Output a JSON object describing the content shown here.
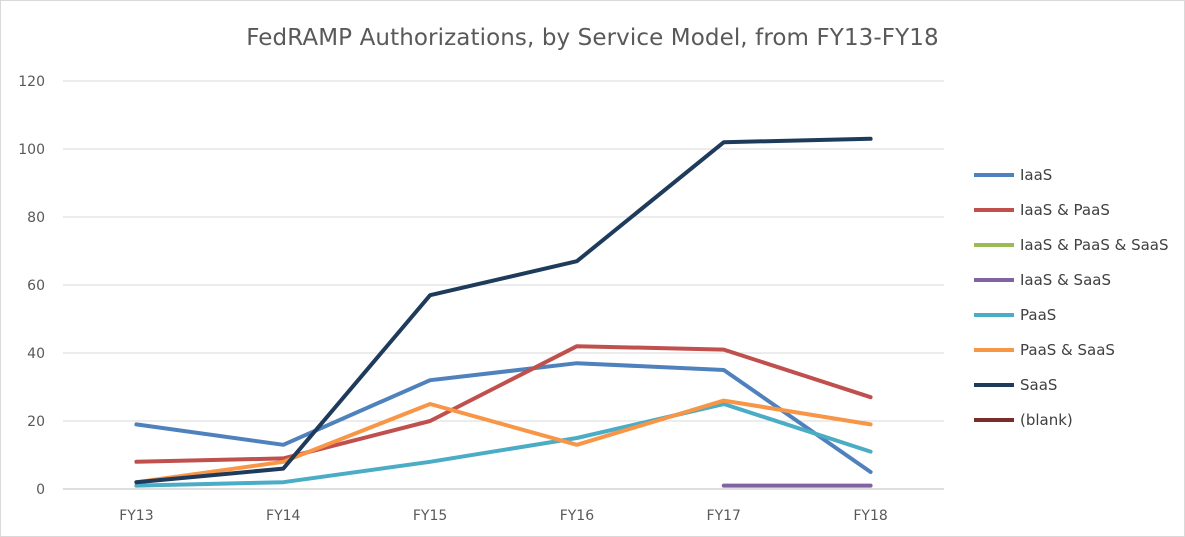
{
  "chart_data": {
    "type": "line",
    "title": "FedRAMP Authorizations, by Service Model, from FY13-FY18",
    "xlabel": "",
    "ylabel": "",
    "categories": [
      "FY13",
      "FY14",
      "FY15",
      "FY16",
      "FY17",
      "FY18"
    ],
    "ylim": [
      0,
      120
    ],
    "yticks": [
      0,
      20,
      40,
      60,
      80,
      100,
      120
    ],
    "grid": true,
    "legend_position": "right",
    "series": [
      {
        "name": "IaaS",
        "color": "#4F81BD",
        "values": [
          19,
          13,
          32,
          37,
          35,
          5
        ]
      },
      {
        "name": "IaaS & PaaS",
        "color": "#C0504D",
        "values": [
          8,
          9,
          20,
          42,
          41,
          27
        ]
      },
      {
        "name": "IaaS & PaaS & SaaS",
        "color": "#9BBB59",
        "values": [
          null,
          null,
          null,
          null,
          null,
          null
        ]
      },
      {
        "name": "IaaS & SaaS",
        "color": "#8064A2",
        "values": [
          null,
          null,
          null,
          null,
          1,
          1
        ]
      },
      {
        "name": "PaaS",
        "color": "#4BACC6",
        "values": [
          1,
          2,
          8,
          15,
          25,
          11
        ]
      },
      {
        "name": "PaaS & SaaS",
        "color": "#F79646",
        "values": [
          2,
          8,
          25,
          13,
          26,
          19
        ]
      },
      {
        "name": "SaaS",
        "color": "#1F3B5C",
        "values": [
          2,
          6,
          57,
          67,
          102,
          103
        ]
      },
      {
        "name": "(blank)",
        "color": "#7B2C2A",
        "values": [
          null,
          null,
          null,
          null,
          null,
          null
        ]
      }
    ]
  }
}
